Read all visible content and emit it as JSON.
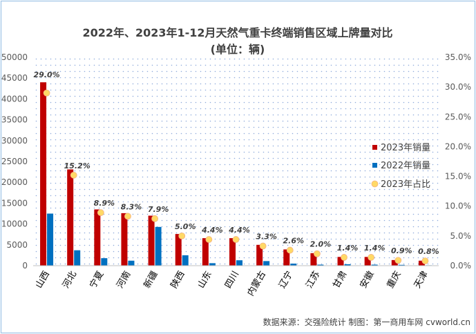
{
  "colors": {
    "bar_2023": "#C00000",
    "bar_2022": "#0070C0",
    "share_dot": "#FFD966",
    "share_dot_edge": "#F4B183",
    "grid_dot": "#8EAADB",
    "border": "#9DC3E6"
  },
  "chart_data": {
    "type": "bar",
    "title": "2022年、2023年1-12月天然气重卡终端销售区域上牌量对比",
    "subtitle": "(单位：辆)",
    "categories": [
      "山西",
      "河北",
      "宁夏",
      "河南",
      "新疆",
      "陕西",
      "山东",
      "四川",
      "内蒙古",
      "辽宁",
      "江苏",
      "甘肃",
      "安徽",
      "重庆",
      "天津"
    ],
    "series": [
      {
        "name": "2023年销量",
        "axis": "left",
        "values": [
          44000,
          23100,
          13500,
          12600,
          12000,
          7600,
          6600,
          6600,
          5000,
          3900,
          3000,
          2100,
          2100,
          1350,
          1200
        ]
      },
      {
        "name": "2022年销量",
        "axis": "left",
        "values": [
          12500,
          3700,
          1800,
          1200,
          9300,
          2500,
          600,
          1300,
          1100,
          500,
          250,
          350,
          250,
          200,
          100
        ]
      },
      {
        "name": "2023年占比",
        "axis": "right",
        "type": "scatter",
        "values": [
          29.0,
          15.2,
          8.9,
          8.3,
          7.9,
          5.0,
          4.4,
          4.4,
          3.3,
          2.6,
          2.0,
          1.4,
          1.4,
          0.9,
          0.8
        ],
        "labels": [
          "29.0%",
          "15.2%",
          "8.9%",
          "8.3%",
          "7.9%",
          "5.0%",
          "4.4%",
          "4.4%",
          "3.3%",
          "2.6%",
          "2.0%",
          "1.4%",
          "1.4%",
          "0.9%",
          "0.8%"
        ]
      }
    ],
    "ylim": [
      0,
      50000
    ],
    "y_ticks": [
      "0",
      "5000",
      "10000",
      "15000",
      "20000",
      "25000",
      "30000",
      "35000",
      "40000",
      "45000",
      "50000"
    ],
    "y2lim": [
      0,
      35
    ],
    "y2_ticks": [
      "0.0%",
      "5.0%",
      "10.0%",
      "15.0%",
      "20.0%",
      "25.0%",
      "30.0%",
      "35.0%"
    ],
    "legend": [
      "2023年销量",
      "2022年销量",
      "2023年占比"
    ],
    "legend_position": "right"
  },
  "footer": {
    "source": "数据来源：交强险统计  制图：第一商用车网 cvworld.cn"
  }
}
